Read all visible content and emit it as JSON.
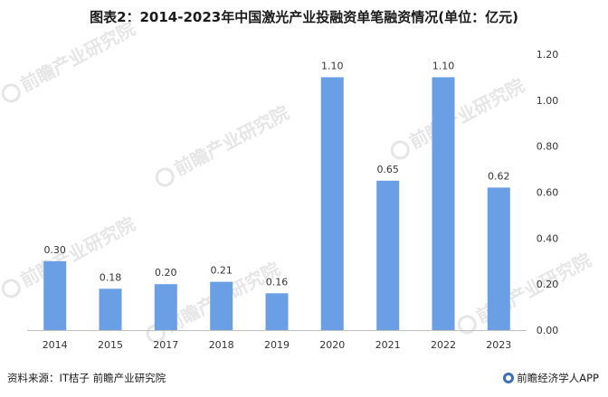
{
  "title": "图表2：2014-2023年中国激光产业投融资单笔融资情况(单位：亿元)",
  "footer": {
    "source": "资料来源：IT桔子 前瞻产业研究院",
    "brand": "前瞻经济学人APP"
  },
  "watermark": {
    "text": "前瞻产业研究院"
  },
  "colors": {
    "bar": "#6a9fe6",
    "axis": "#bfbfbf",
    "text": "#333333",
    "watermark": "#e6e6e6"
  },
  "chart_data": {
    "type": "bar",
    "title": "图表2：2014-2023年中国激光产业投融资单笔融资情况(单位：亿元)",
    "xlabel": "",
    "ylabel": "",
    "categories": [
      "2014",
      "2015",
      "2017",
      "2018",
      "2019",
      "2020",
      "2021",
      "2022",
      "2023"
    ],
    "values": [
      0.3,
      0.18,
      0.2,
      0.21,
      0.16,
      1.1,
      0.65,
      1.1,
      0.62
    ],
    "value_labels": [
      "0.30",
      "0.18",
      "0.20",
      "0.21",
      "0.16",
      "1.10",
      "0.65",
      "1.10",
      "0.62"
    ],
    "ylim": [
      0,
      1.2
    ],
    "yticks": [
      "0.00",
      "0.20",
      "0.40",
      "0.60",
      "0.80",
      "1.00",
      "1.20"
    ],
    "y_axis_side": "right",
    "grid": false,
    "legend": "none"
  }
}
